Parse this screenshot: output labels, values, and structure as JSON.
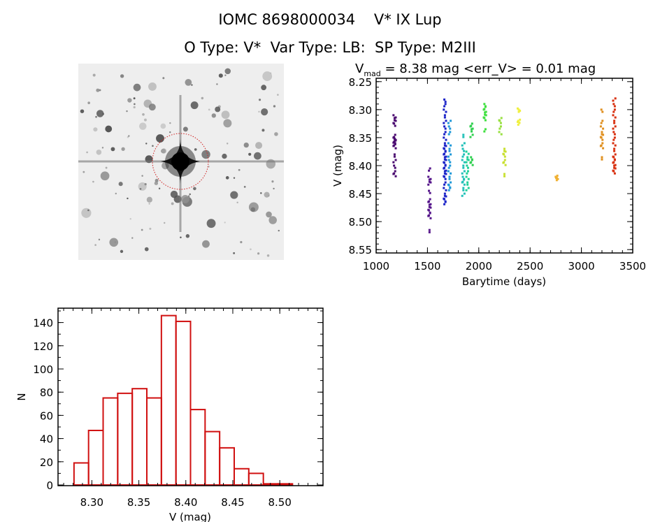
{
  "header": {
    "title": "IOMC 8698000034    V* IX Lup",
    "subtitle": "O Type: V*  Var Type: LB:  SP Type: M2III"
  },
  "image_panel": {
    "aperture_color": "#d02020"
  },
  "chart_data": [
    {
      "type": "scatter",
      "title_parts": {
        "v": "V",
        "sub": "mad",
        "rest": " = 8.38 mag <err_V> = 0.01 mag"
      },
      "xlabel": "Barytime (days)",
      "ylabel": "V (mag)",
      "xlim": [
        1000,
        3500
      ],
      "ylim": [
        8.244,
        8.556
      ],
      "y_inverted": true,
      "xticks": [
        1000,
        1500,
        2000,
        2500,
        3000,
        3500
      ],
      "xtick_labels": [
        "1000",
        "1500",
        "2000",
        "2500",
        "3000",
        "3500"
      ],
      "yticks": [
        8.25,
        8.3,
        8.35,
        8.4,
        8.45,
        8.5,
        8.55
      ],
      "ytick_labels": [
        "8.25",
        "8.30",
        "8.35",
        "8.40",
        "8.45",
        "8.50",
        "8.55"
      ],
      "groups": [
        {
          "x": 1180,
          "color": "#4a0a70",
          "y": [
            8.31,
            8.315,
            8.32,
            8.325,
            8.345,
            8.35,
            8.352,
            8.355,
            8.358,
            8.36,
            8.365,
            8.38,
            8.39,
            8.4,
            8.41,
            8.415
          ]
        },
        {
          "x": 1520,
          "color": "#55158a",
          "y": [
            8.405,
            8.42,
            8.425,
            8.43,
            8.445,
            8.46,
            8.465,
            8.47,
            8.475,
            8.48,
            8.485,
            8.49,
            8.515
          ]
        },
        {
          "x": 1670,
          "color": "#1c24c8",
          "y": [
            8.282,
            8.29,
            8.3,
            8.31,
            8.32,
            8.33,
            8.34,
            8.35,
            8.36,
            8.365,
            8.37,
            8.375,
            8.38,
            8.385,
            8.39,
            8.395,
            8.4,
            8.405,
            8.41,
            8.415,
            8.42,
            8.43,
            8.44,
            8.45,
            8.455,
            8.46,
            8.465
          ]
        },
        {
          "x": 1715,
          "color": "#2098d8",
          "y": [
            8.32,
            8.33,
            8.34,
            8.36,
            8.37,
            8.38,
            8.39,
            8.4,
            8.41,
            8.42,
            8.43,
            8.435,
            8.44
          ]
        },
        {
          "x": 1850,
          "color": "#20c0b8",
          "y": [
            8.345,
            8.36,
            8.37,
            8.38,
            8.39,
            8.4,
            8.41,
            8.42,
            8.425,
            8.43,
            8.44,
            8.45
          ]
        },
        {
          "x": 1890,
          "color": "#20d098",
          "y": [
            8.375,
            8.385,
            8.39,
            8.4,
            8.41,
            8.42,
            8.43,
            8.44
          ]
        },
        {
          "x": 1930,
          "color": "#30d050",
          "y": [
            8.325,
            8.33,
            8.335,
            8.345,
            8.385,
            8.39,
            8.395
          ]
        },
        {
          "x": 2060,
          "color": "#40e040",
          "y": [
            8.29,
            8.295,
            8.3,
            8.305,
            8.31,
            8.315,
            8.335
          ]
        },
        {
          "x": 2210,
          "color": "#98e040",
          "y": [
            8.315,
            8.32,
            8.33,
            8.34
          ]
        },
        {
          "x": 2250,
          "color": "#c8e030",
          "y": [
            8.37,
            8.375,
            8.38,
            8.39,
            8.395,
            8.415
          ]
        },
        {
          "x": 2390,
          "color": "#f0f040",
          "y": [
            8.298,
            8.3,
            8.318,
            8.32,
            8.323
          ]
        },
        {
          "x": 2760,
          "color": "#f0b030",
          "y": [
            8.418,
            8.42,
            8.422
          ]
        },
        {
          "x": 3200,
          "color": "#e09020",
          "y": [
            8.3,
            8.32,
            8.33,
            8.34,
            8.345,
            8.35,
            8.36,
            8.365,
            8.385
          ]
        },
        {
          "x": 3320,
          "color": "#d83010",
          "y": [
            8.28,
            8.29,
            8.3,
            8.31,
            8.32,
            8.33,
            8.34,
            8.35,
            8.36,
            8.37,
            8.38,
            8.385,
            8.39,
            8.395,
            8.4,
            8.405,
            8.41
          ]
        }
      ]
    },
    {
      "type": "bar",
      "subtype": "histogram",
      "xlabel": "V (mag)",
      "ylabel": "N",
      "xlim": [
        8.264,
        8.546
      ],
      "ylim": [
        0,
        153
      ],
      "xticks": [
        8.3,
        8.35,
        8.4,
        8.45,
        8.5
      ],
      "xtick_labels": [
        "8.30",
        "8.35",
        "8.40",
        "8.45",
        "8.50"
      ],
      "yticks": [
        0,
        20,
        40,
        60,
        80,
        100,
        120,
        140
      ],
      "ytick_labels": [
        "0",
        "20",
        "40",
        "60",
        "80",
        "100",
        "120",
        "140"
      ],
      "bin_start": 8.281,
      "bin_width": 0.0155,
      "values": [
        19,
        47,
        75,
        79,
        83,
        75,
        146,
        141,
        65,
        46,
        32,
        14,
        10,
        1,
        1
      ],
      "color": "#d01010"
    }
  ]
}
